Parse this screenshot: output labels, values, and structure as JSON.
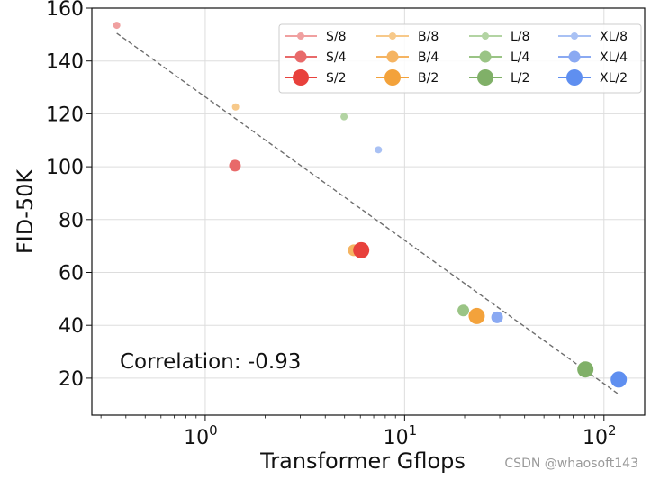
{
  "chart_data": {
    "type": "scatter",
    "title": "",
    "xlabel": "Transformer Gflops",
    "ylabel": "FID-50K",
    "xscale": "log",
    "xlim": [
      0.27,
      160
    ],
    "ylim": [
      6,
      160
    ],
    "yticks": [
      20,
      40,
      60,
      80,
      100,
      120,
      140,
      160
    ],
    "ytick_labels": [
      "20",
      "40",
      "60",
      "80",
      "100",
      "120",
      "140",
      "160"
    ],
    "xticks": [
      1,
      10,
      100
    ],
    "xtick_labels": [
      {
        "base": "10",
        "exp": "0"
      },
      {
        "base": "10",
        "exp": "1"
      },
      {
        "base": "10",
        "exp": "2"
      }
    ],
    "grid": true,
    "legend_position": "top-right",
    "legend_columns": 4,
    "annotation": "Correlation: -0.93",
    "trendline": {
      "x": [
        0.36,
        118
      ],
      "y": [
        150.5,
        14
      ]
    },
    "series": [
      {
        "name": "S/8",
        "x": 0.36,
        "y": 153.5,
        "color": "#f0a0a0",
        "size": 1
      },
      {
        "name": "S/4",
        "x": 1.41,
        "y": 100.4,
        "color": "#e86a6a",
        "size": 2
      },
      {
        "name": "S/2",
        "x": 6.06,
        "y": 68.4,
        "color": "#e8413c",
        "size": 3
      },
      {
        "name": "B/8",
        "x": 1.42,
        "y": 122.6,
        "color": "#f7c98a",
        "size": 1
      },
      {
        "name": "B/4",
        "x": 5.56,
        "y": 68.4,
        "color": "#f5b462",
        "size": 2
      },
      {
        "name": "B/2",
        "x": 23.0,
        "y": 43.5,
        "color": "#f3a23b",
        "size": 3
      },
      {
        "name": "L/8",
        "x": 4.97,
        "y": 118.9,
        "color": "#b3d4a3",
        "size": 1
      },
      {
        "name": "L/4",
        "x": 19.7,
        "y": 45.6,
        "color": "#9ac485",
        "size": 2
      },
      {
        "name": "L/2",
        "x": 80.7,
        "y": 23.3,
        "color": "#80b068",
        "size": 3
      },
      {
        "name": "XL/8",
        "x": 7.39,
        "y": 106.4,
        "color": "#a9c1f4",
        "size": 1
      },
      {
        "name": "XL/4",
        "x": 29.1,
        "y": 43.0,
        "color": "#8aa9f2",
        "size": 2
      },
      {
        "name": "XL/2",
        "x": 118.6,
        "y": 19.5,
        "color": "#5f8ff0",
        "size": 3
      }
    ]
  },
  "watermark": "CSDN @whaosoft143"
}
